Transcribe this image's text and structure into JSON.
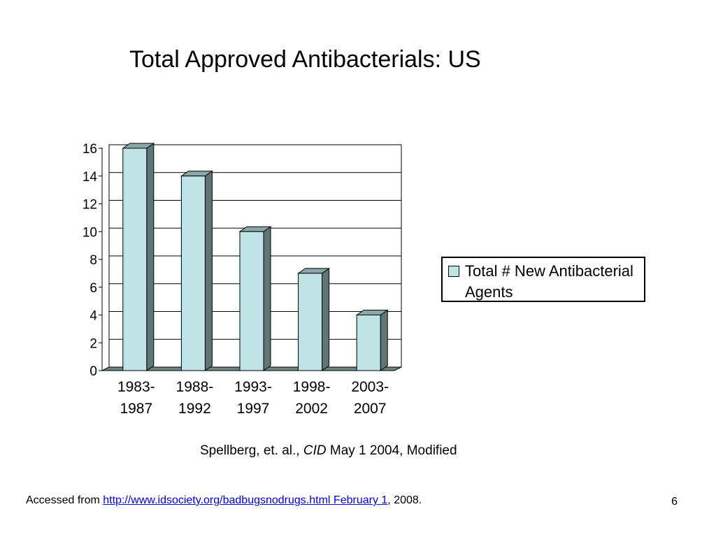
{
  "slide": {
    "title": "Total Approved Antibacterials: US",
    "page_number": "6"
  },
  "source": {
    "prefix": "Spellberg, et. al., ",
    "journal": "CID",
    "suffix": " May 1 2004, Modified"
  },
  "footer": {
    "prefix": "Accessed from ",
    "link_text": "http://www.idsociety.org/badbugsnodrugs.html February 1",
    "suffix": ", 2008."
  },
  "colors": {
    "bar_front": "#bfe4e6",
    "bar_side": "#5f7676",
    "bar_top": "#8aa7a8",
    "floor": "#6f8585"
  },
  "chart_data": {
    "type": "bar",
    "title": "",
    "categories": [
      [
        "1983-",
        "1987"
      ],
      [
        "1988-",
        "1992"
      ],
      [
        "1993-",
        "1997"
      ],
      [
        "1998-",
        "2002"
      ],
      [
        "2003-",
        "2007"
      ]
    ],
    "series": [
      {
        "name": "Total # New Antibacterial Agents",
        "values": [
          16,
          14,
          10,
          7,
          4
        ]
      }
    ],
    "ylim": [
      0,
      16
    ],
    "yticks": [
      0,
      2,
      4,
      6,
      8,
      10,
      12,
      14,
      16
    ],
    "grid": true,
    "legend_position": "right",
    "style": "3d-column"
  }
}
